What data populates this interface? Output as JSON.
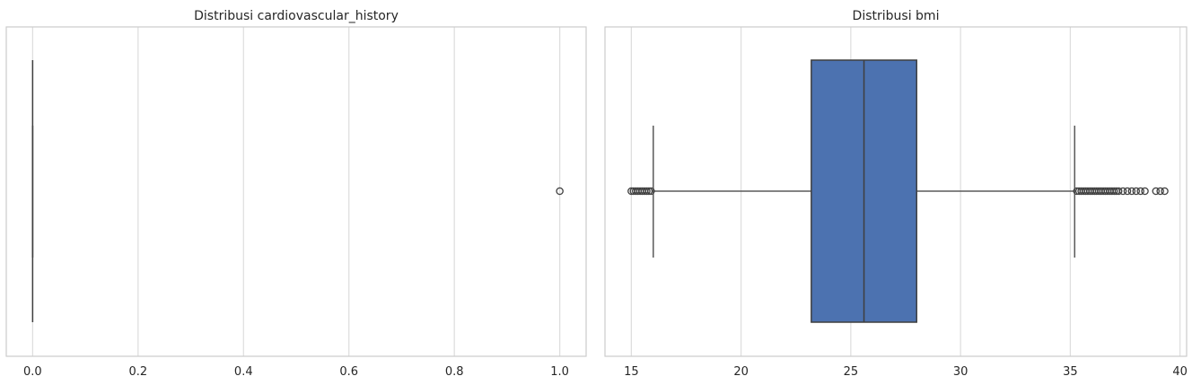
{
  "chart_data": [
    {
      "type": "box",
      "title": "Distribusi cardiovascular_history",
      "xlabel": "",
      "ylabel": "",
      "xlim": [
        -0.05,
        1.05
      ],
      "xticks": [
        0.0,
        0.2,
        0.4,
        0.6,
        0.8,
        1.0
      ],
      "tick_labels": [
        "0.0",
        "0.2",
        "0.4",
        "0.6",
        "0.8",
        "1.0"
      ],
      "grid": true,
      "box": {
        "min": 0.0,
        "q1": 0.0,
        "median": 0.0,
        "q3": 0.0,
        "max": 0.0
      },
      "outliers": [
        1.0
      ],
      "color": "#4c72b0"
    },
    {
      "type": "box",
      "title": "Distribusi bmi",
      "xlabel": "",
      "ylabel": "",
      "xlim": [
        13.8,
        40.3
      ],
      "xticks": [
        15,
        20,
        25,
        30,
        35,
        40
      ],
      "tick_labels": [
        "15",
        "20",
        "25",
        "30",
        "35",
        "40"
      ],
      "grid": true,
      "box": {
        "min": 16.0,
        "q1": 23.2,
        "median": 25.6,
        "q3": 28.0,
        "max": 35.2
      },
      "outliers": [
        15.0,
        15.1,
        15.2,
        15.3,
        15.4,
        15.5,
        15.6,
        15.7,
        15.8,
        15.9,
        35.3,
        35.4,
        35.5,
        35.6,
        35.7,
        35.8,
        35.9,
        36.0,
        36.1,
        36.2,
        36.3,
        36.4,
        36.5,
        36.6,
        36.7,
        36.8,
        36.9,
        37.0,
        37.1,
        37.2,
        37.4,
        37.6,
        37.8,
        38.0,
        38.2,
        38.4,
        38.9,
        39.1,
        39.3
      ],
      "color": "#4c72b0"
    }
  ]
}
